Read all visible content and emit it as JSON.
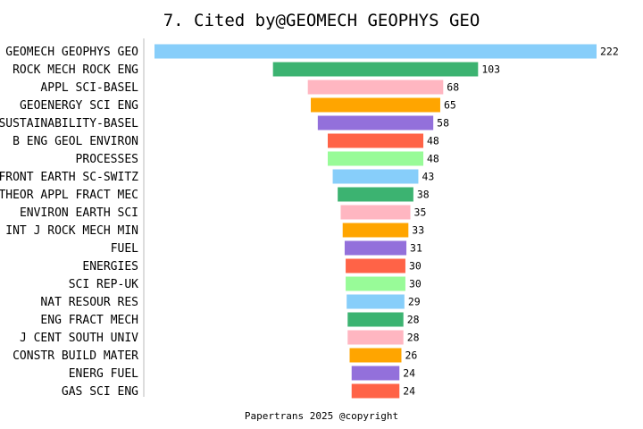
{
  "chart_data": {
    "type": "bar",
    "orientation": "horizontal-centered",
    "title": "7. Cited by@GEOMECH GEOPHYS GEO",
    "footer": "Papertrans 2025 @copyright",
    "categories": [
      "GEOMECH GEOPHYS GEO",
      "ROCK MECH ROCK ENG",
      "APPL SCI-BASEL",
      "GEOENERGY SCI ENG",
      "SUSTAINABILITY-BASEL",
      "B ENG GEOL ENVIRON",
      "PROCESSES",
      "FRONT EARTH SC-SWITZ",
      "THEOR APPL FRACT MEC",
      "ENVIRON EARTH SCI",
      "INT J ROCK MECH MIN",
      "FUEL",
      "ENERGIES",
      "SCI REP-UK",
      "NAT RESOUR RES",
      "ENG FRACT MECH",
      "J CENT SOUTH UNIV",
      "CONSTR BUILD MATER",
      "ENERG FUEL",
      "GAS SCI ENG"
    ],
    "values": [
      222,
      103,
      68,
      65,
      58,
      48,
      48,
      43,
      38,
      35,
      33,
      31,
      30,
      30,
      29,
      28,
      28,
      26,
      24,
      24
    ],
    "colors": [
      "#87CEFA",
      "#3CB371",
      "#FFB6C1",
      "#FFA500",
      "#9370DB",
      "#FF6347",
      "#98FB98"
    ],
    "grid": false,
    "legend": "none"
  }
}
